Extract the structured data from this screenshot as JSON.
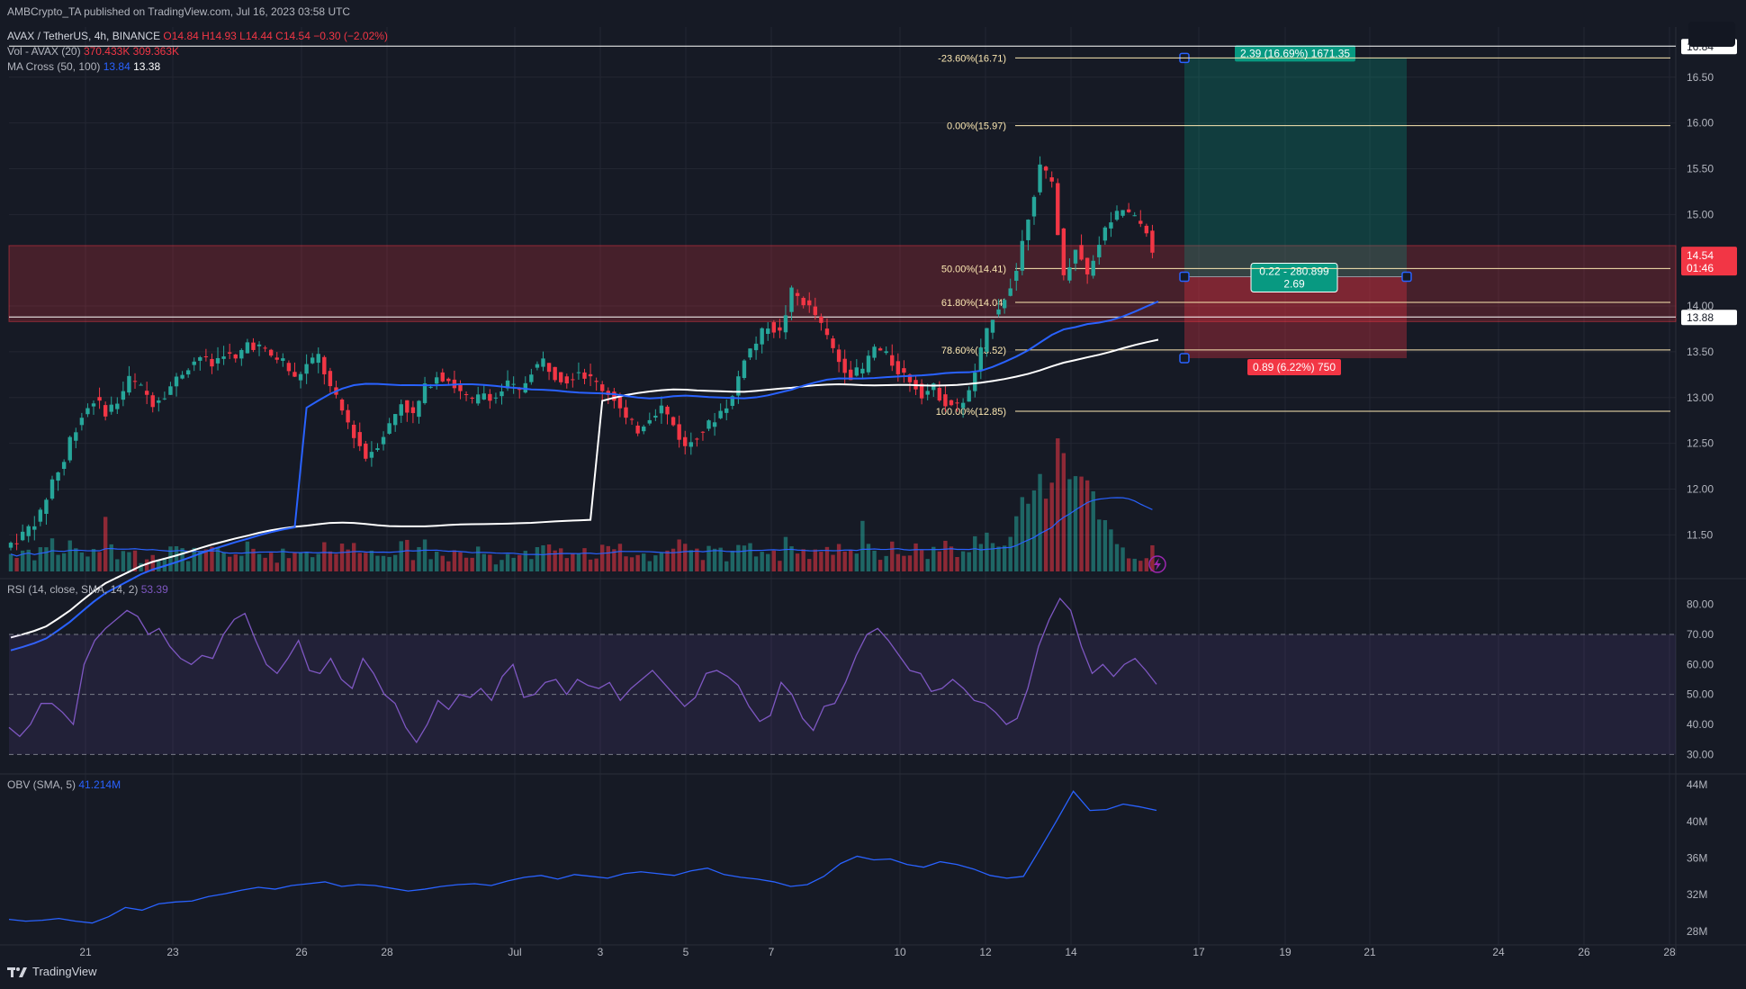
{
  "header": {
    "published": "AMBCrypto_TA published on TradingView.com, Jul 16, 2023 03:58 UTC",
    "symbol": "AVAX / TetherUS, 4h, BINANCE",
    "ohlc": "O14.84 H14.93 L14.44 C14.54 −0.30 (−2.02%)",
    "vol_label": "Vol - AVAX (20)",
    "vol_values": "370.433K  309.363K",
    "ma_label": "MA Cross (50, 100)",
    "ma_val1": "13.84",
    "ma_val2": "13.38",
    "rsi_label": "RSI (14, close, SMA, 14, 2)",
    "rsi_value": "53.39",
    "obv_label": "OBV (SMA, 5)",
    "obv_value": "41.214M"
  },
  "footer": {
    "brand": "TradingView"
  },
  "colors": {
    "bg": "#161a25",
    "up": "#26a69a",
    "down": "#f23645",
    "ma50": "#2962ff",
    "ma100": "#ffffff",
    "fib": "#fce8b2",
    "rsi": "#7e57c2",
    "obv": "#2962ff"
  },
  "chart_data": [
    {
      "type": "candlestick",
      "title": "AVAX / TetherUS, 4h, BINANCE",
      "y_axis_ticks": [
        "16.84",
        "16.50",
        "16.00",
        "15.50",
        "15.00",
        "14.54",
        "14.00",
        "13.88",
        "13.50",
        "13.00",
        "12.50",
        "12.00",
        "11.50"
      ],
      "x_axis_ticks": [
        "21",
        "23",
        "26",
        "28",
        "Jul",
        "3",
        "5",
        "7",
        "10",
        "12",
        "14",
        "17",
        "19",
        "21",
        "24",
        "26",
        "28"
      ],
      "price_label_current": "14.54",
      "price_label_countdown": "01:46",
      "price_label_line": "13.88",
      "fib_levels": [
        {
          "label": "-23.60%(16.71)",
          "value": 16.71
        },
        {
          "label": "0.00%(15.97)",
          "value": 15.97
        },
        {
          "label": "50.00%(14.41)",
          "value": 14.41
        },
        {
          "label": "61.80%(14.04)",
          "value": 14.04
        },
        {
          "label": "78.60%(13.52)",
          "value": 13.52
        },
        {
          "label": "100.00%(12.85)",
          "value": 12.85
        }
      ],
      "supply_zone": {
        "top": 14.66,
        "bottom": 13.83
      },
      "horizontal_lines": [
        16.84,
        13.88
      ],
      "position": {
        "entry": 14.32,
        "target": 16.71,
        "stop": 13.43,
        "target_label": "2.39 (16.69%) 1671.35",
        "entry_label_1": "0.22 - 280.899",
        "entry_label_2": "2.69",
        "stop_label": "0.89 (6.22%) 750"
      },
      "price_path": [
        [
          0,
          11.36
        ],
        [
          3,
          11.5
        ],
        [
          6,
          11.72
        ],
        [
          8,
          12.1
        ],
        [
          10,
          12.3
        ],
        [
          11,
          12.55
        ],
        [
          13,
          12.8
        ],
        [
          15,
          12.98
        ],
        [
          17,
          12.85
        ],
        [
          19,
          12.95
        ],
        [
          21,
          13.2
        ],
        [
          23,
          13.1
        ],
        [
          25,
          12.95
        ],
        [
          27,
          13.05
        ],
        [
          29,
          13.2
        ],
        [
          31,
          13.35
        ],
        [
          33,
          13.45
        ],
        [
          35,
          13.35
        ],
        [
          37,
          13.5
        ],
        [
          39,
          13.4
        ],
        [
          41,
          13.6
        ],
        [
          43,
          13.55
        ],
        [
          45,
          13.45
        ],
        [
          47,
          13.4
        ],
        [
          49,
          13.2
        ],
        [
          51,
          13.35
        ],
        [
          53,
          13.45
        ],
        [
          55,
          13.1
        ],
        [
          57,
          12.85
        ],
        [
          59,
          12.6
        ],
        [
          61,
          12.35
        ],
        [
          63,
          12.5
        ],
        [
          65,
          12.7
        ],
        [
          67,
          12.95
        ],
        [
          69,
          12.8
        ],
        [
          71,
          13.1
        ],
        [
          73,
          13.25
        ],
        [
          75,
          13.2
        ],
        [
          77,
          13.05
        ],
        [
          79,
          12.95
        ],
        [
          81,
          13.05
        ],
        [
          83,
          13.0
        ],
        [
          85,
          13.15
        ],
        [
          87,
          13.05
        ],
        [
          89,
          13.3
        ],
        [
          91,
          13.4
        ],
        [
          93,
          13.25
        ],
        [
          95,
          13.2
        ],
        [
          97,
          13.3
        ],
        [
          99,
          13.2
        ],
        [
          101,
          13.1
        ],
        [
          103,
          13.0
        ],
        [
          105,
          12.75
        ],
        [
          107,
          12.65
        ],
        [
          109,
          12.8
        ],
        [
          111,
          12.9
        ],
        [
          113,
          12.7
        ],
        [
          115,
          12.45
        ],
        [
          117,
          12.6
        ],
        [
          119,
          12.7
        ],
        [
          121,
          12.85
        ],
        [
          123,
          13.0
        ],
        [
          125,
          13.45
        ],
        [
          127,
          13.6
        ],
        [
          129,
          13.8
        ],
        [
          131,
          13.7
        ],
        [
          133,
          14.15
        ],
        [
          135,
          14.05
        ],
        [
          137,
          13.9
        ],
        [
          139,
          13.65
        ],
        [
          141,
          13.4
        ],
        [
          143,
          13.25
        ],
        [
          145,
          13.3
        ],
        [
          147,
          13.55
        ],
        [
          149,
          13.45
        ],
        [
          151,
          13.3
        ],
        [
          153,
          13.2
        ],
        [
          155,
          13.05
        ],
        [
          157,
          13.1
        ],
        [
          159,
          12.95
        ],
        [
          161,
          12.9
        ],
        [
          163,
          13.05
        ],
        [
          165,
          13.5
        ],
        [
          167,
          13.9
        ],
        [
          169,
          14.1
        ],
        [
          171,
          14.4
        ],
        [
          173,
          15.0
        ],
        [
          175,
          15.5
        ],
        [
          177,
          15.35
        ],
        [
          179,
          14.3
        ],
        [
          181,
          14.65
        ],
        [
          183,
          14.35
        ],
        [
          185,
          14.7
        ],
        [
          187,
          14.95
        ],
        [
          189,
          15.05
        ],
        [
          191,
          14.95
        ],
        [
          193,
          14.84
        ],
        [
          194,
          14.54
        ]
      ],
      "ma50_value_last": 13.84,
      "ma100_value_last": 13.38
    },
    {
      "type": "bar",
      "title": "Vol - AVAX (20)",
      "values_relative": "volume histogram under price pane; spikes near Jul 1, Jul 14"
    },
    {
      "type": "line",
      "title": "RSI (14, close, SMA, 14, 2)",
      "y_axis_ticks": [
        "80.00",
        "70.00",
        "60.00",
        "50.00",
        "40.00",
        "30.00"
      ],
      "band": [
        30,
        70
      ],
      "values": [
        39,
        36,
        40,
        47,
        47,
        44,
        40,
        60,
        68,
        72,
        75,
        78,
        76,
        70,
        72,
        66,
        62,
        60,
        63,
        62,
        70,
        75,
        77,
        68,
        60,
        57,
        62,
        68,
        58,
        57,
        62,
        55,
        52,
        62,
        57,
        50,
        47,
        39,
        34,
        40,
        48,
        45,
        50,
        49,
        52,
        48,
        56,
        60,
        49,
        50,
        54,
        55,
        50,
        55,
        53,
        52,
        54,
        48,
        52,
        55,
        58,
        54,
        50,
        46,
        49,
        57,
        58,
        56,
        53,
        46,
        41,
        43,
        54,
        50,
        42,
        38,
        46,
        47,
        54,
        63,
        70,
        72,
        68,
        63,
        58,
        57,
        51,
        52,
        55,
        52,
        48,
        47,
        44,
        40,
        42,
        52,
        66,
        75,
        82,
        78,
        66,
        57,
        60,
        56,
        60,
        62,
        58,
        53.39
      ]
    },
    {
      "type": "line",
      "title": "OBV (SMA, 5)",
      "y_axis_ticks": [
        "44M",
        "40M",
        "36M",
        "32M",
        "28M"
      ],
      "values": [
        29.3,
        29.1,
        29.2,
        29.4,
        29.1,
        28.9,
        29.6,
        30.6,
        30.3,
        31.0,
        31.2,
        31.3,
        31.8,
        32.1,
        32.5,
        32.8,
        32.6,
        33.0,
        33.2,
        33.4,
        32.9,
        33.1,
        33.0,
        32.7,
        32.4,
        32.6,
        32.9,
        33.1,
        33.2,
        33.0,
        33.5,
        33.9,
        34.1,
        33.7,
        34.2,
        34.0,
        33.8,
        34.3,
        34.5,
        34.3,
        34.1,
        34.6,
        34.9,
        34.2,
        33.9,
        33.7,
        33.4,
        32.9,
        33.1,
        34.0,
        35.4,
        36.2,
        35.8,
        35.9,
        35.3,
        35.0,
        35.6,
        35.3,
        34.8,
        34.1,
        33.8,
        34.0,
        37.0,
        40.1,
        43.3,
        41.2,
        41.3,
        41.9,
        41.6,
        41.214
      ]
    }
  ]
}
